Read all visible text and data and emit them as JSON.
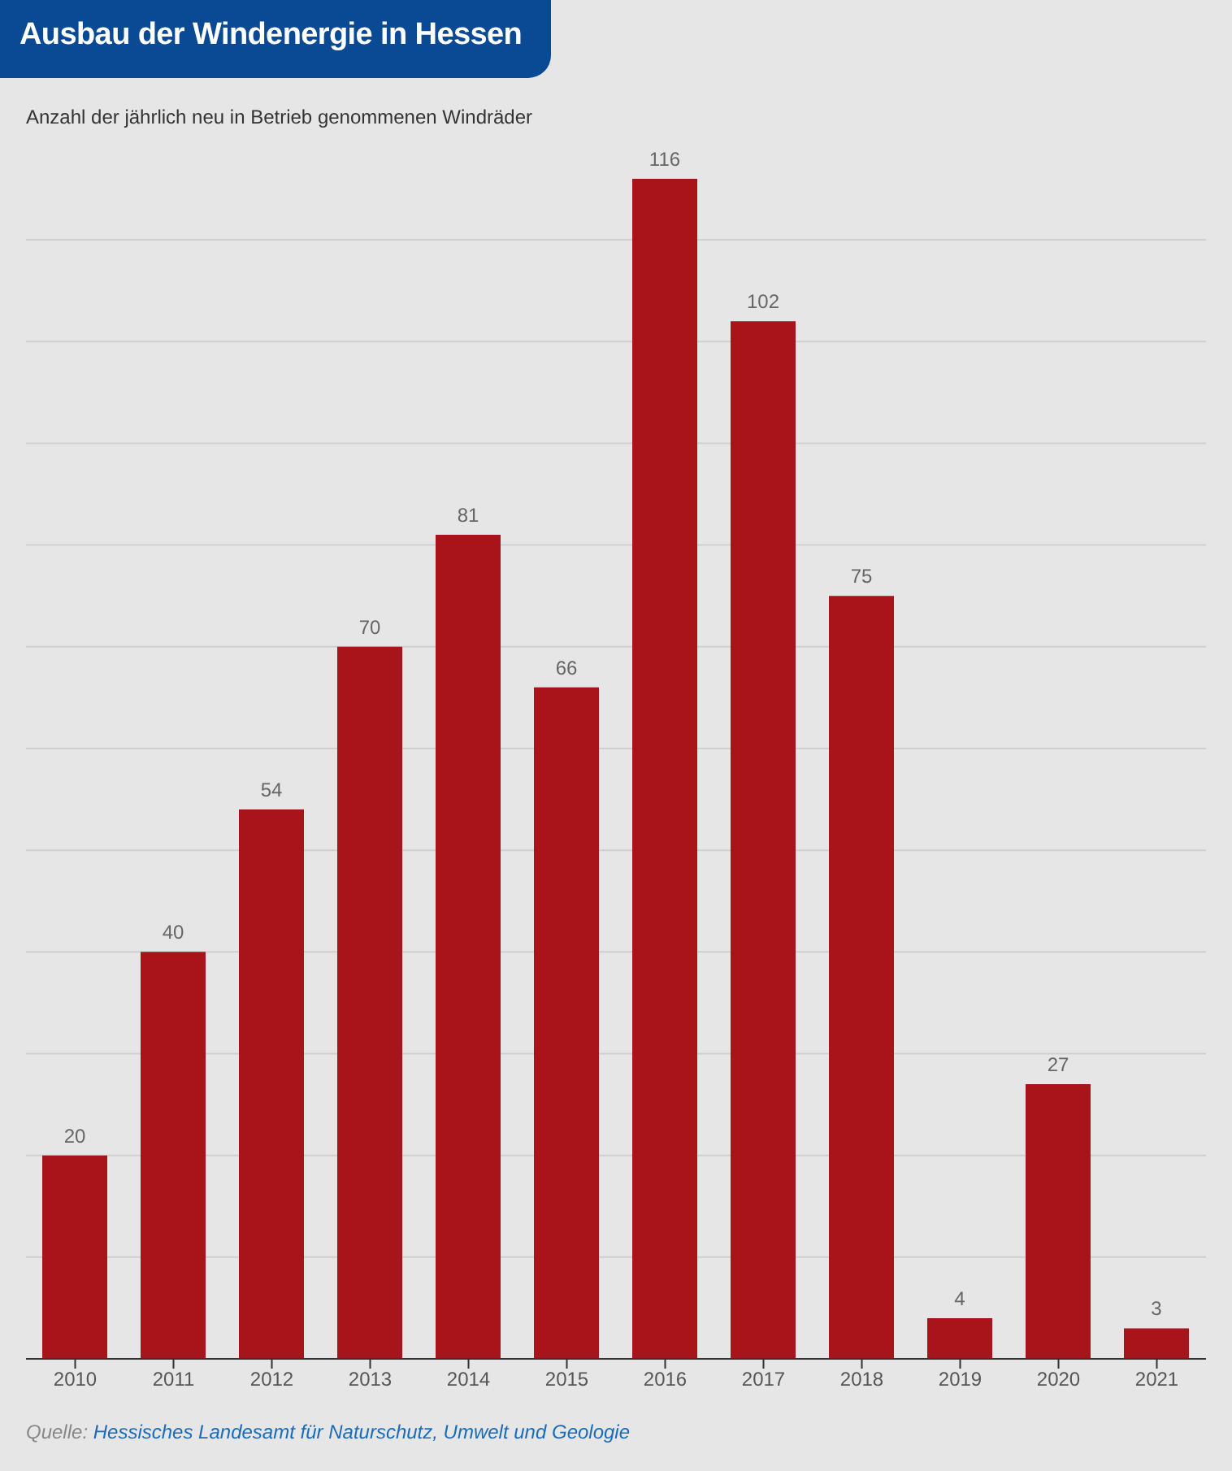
{
  "chart_data": {
    "type": "bar",
    "title": "Ausbau der Windenergie in Hessen",
    "subtitle": "Anzahl der jährlich neu in Betrieb genommenen Windräder",
    "categories": [
      "2010",
      "2011",
      "2012",
      "2013",
      "2014",
      "2015",
      "2016",
      "2017",
      "2018",
      "2019",
      "2020",
      "2021"
    ],
    "values": [
      20,
      40,
      54,
      70,
      81,
      66,
      116,
      102,
      75,
      4,
      27,
      3
    ],
    "color": "#a8141a",
    "data_labels": true,
    "grid": "y",
    "tick_labels": "x",
    "ylim": [
      0,
      116
    ],
    "yticks": [
      {
        "value": 0,
        "label": null
      },
      {
        "value": 10,
        "label": null
      },
      {
        "value": 20,
        "label": null
      },
      {
        "value": 30,
        "label": null
      },
      {
        "value": 40,
        "label": null
      },
      {
        "value": 50,
        "label": null
      },
      {
        "value": 60,
        "label": null
      },
      {
        "value": 70,
        "label": null
      },
      {
        "value": 80,
        "label": null
      },
      {
        "value": 90,
        "label": null
      },
      {
        "value": 100,
        "label": null
      },
      {
        "value": 110,
        "label": null
      }
    ],
    "annotations": [
      "Quelle: Hessisches Landesamt für Naturschutz, Umwelt und Geologie"
    ]
  }
}
